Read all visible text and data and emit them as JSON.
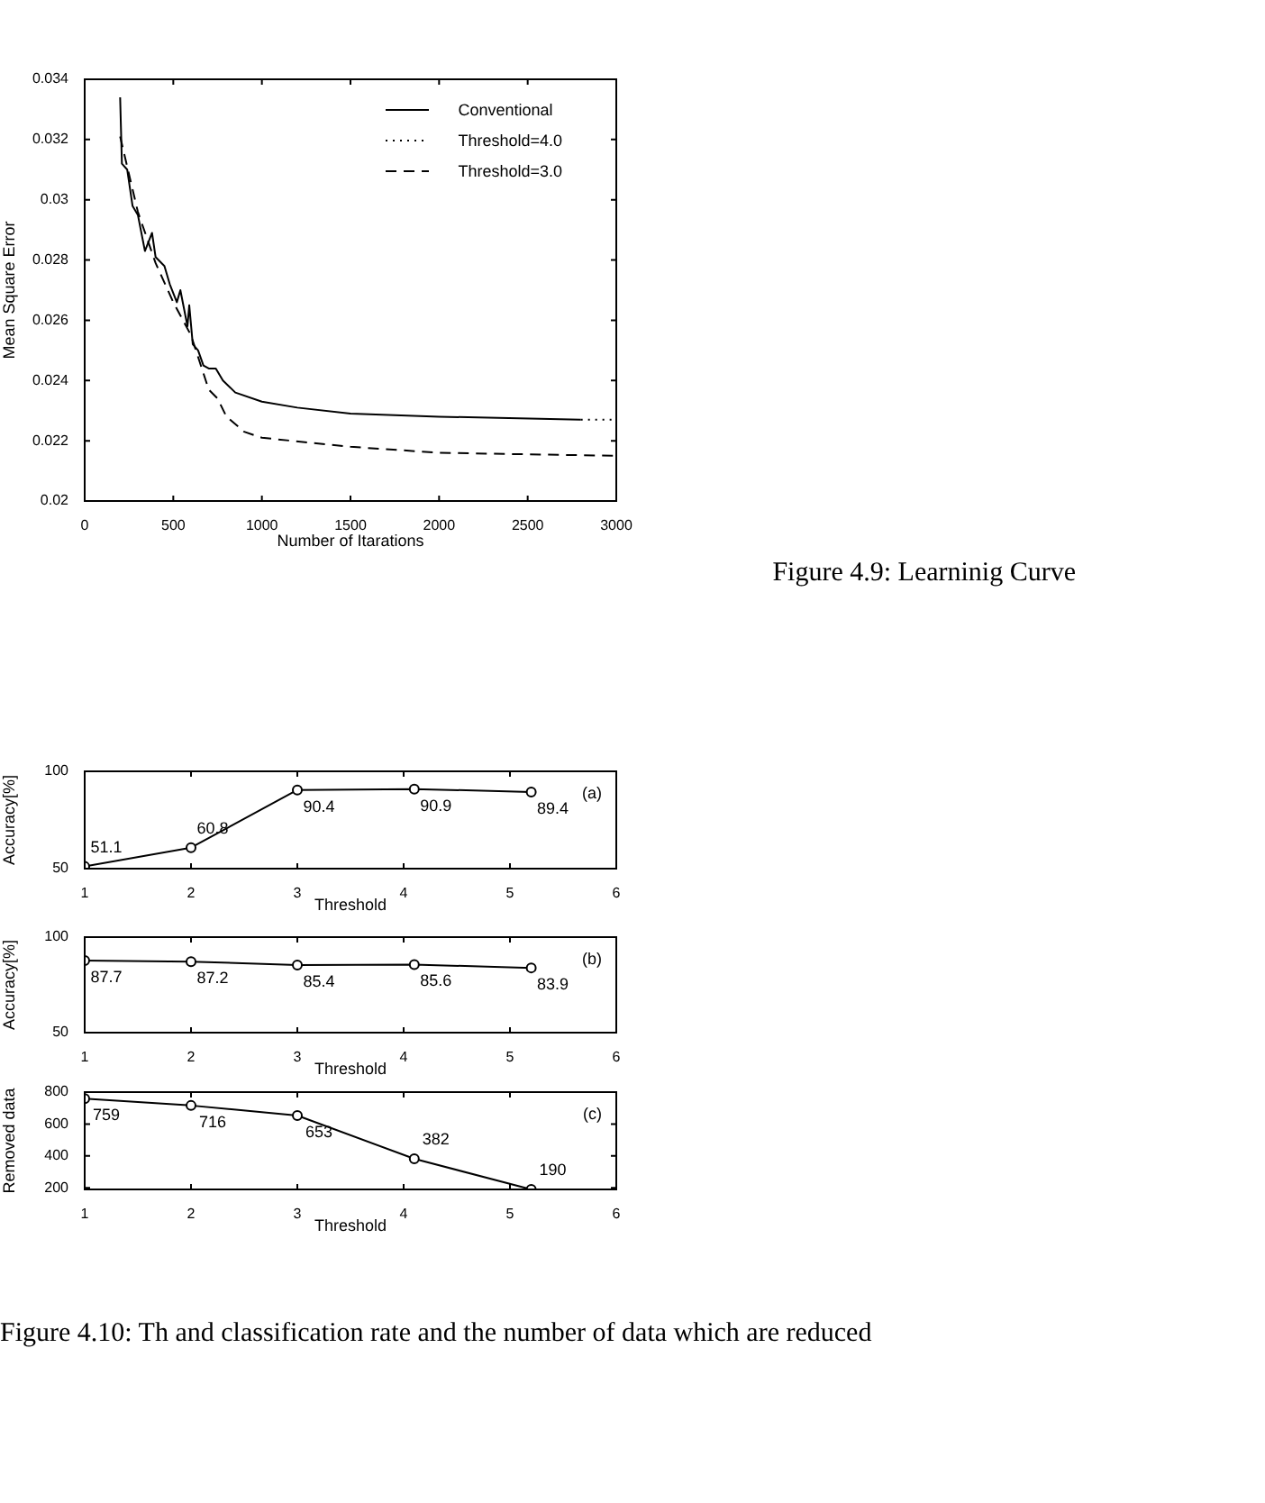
{
  "chart_data": [
    {
      "type": "line",
      "xlabel": "Number of Itarations",
      "ylabel": "Mean Square Error",
      "xlim": [
        0,
        3000
      ],
      "xticks": [
        0,
        500,
        1000,
        1500,
        2000,
        2500,
        3000
      ],
      "ylim": [
        0.02,
        0.034
      ],
      "yticks": [
        0.02,
        0.022,
        0.024,
        0.026,
        0.028,
        0.03,
        0.032,
        0.034
      ],
      "grid": false,
      "legend": "top right",
      "annotations": [
        "Figure 4.9: Learninig Curve"
      ],
      "series": [
        {
          "name": "Conventional",
          "color": "#000000",
          "line_style": "solid",
          "x": [
            200,
            210,
            240,
            270,
            300,
            340,
            380,
            400,
            450,
            480,
            520,
            540,
            560,
            580,
            590,
            610,
            640,
            670,
            700,
            740,
            780,
            850,
            1000,
            1200,
            1500,
            2000,
            2800
          ],
          "values": [
            0.0334,
            0.0312,
            0.031,
            0.0298,
            0.0295,
            0.0283,
            0.0289,
            0.0281,
            0.0278,
            0.0272,
            0.0266,
            0.027,
            0.0264,
            0.0258,
            0.0265,
            0.0252,
            0.025,
            0.0245,
            0.0244,
            0.0244,
            0.024,
            0.0236,
            0.0233,
            0.0231,
            0.0229,
            0.0228,
            0.0227
          ]
        },
        {
          "name": "Threshold=4.0",
          "color": "#000000",
          "line_style": "dotted",
          "x": [
            2800,
            3000
          ],
          "values": [
            0.0227,
            0.0227
          ]
        },
        {
          "name": "Threshold=3.0",
          "color": "#000000",
          "line_style": "dashed",
          "x": [
            200,
            300,
            400,
            500,
            600,
            650,
            700,
            750,
            800,
            900,
            1000,
            1500,
            2000,
            3000
          ],
          "values": [
            0.0321,
            0.0296,
            0.0279,
            0.0266,
            0.0255,
            0.0246,
            0.0237,
            0.0234,
            0.0228,
            0.0223,
            0.0221,
            0.0218,
            0.0216,
            0.0215
          ]
        }
      ]
    },
    {
      "type": "line",
      "subtitle": "(a)",
      "xlabel": "Threshold",
      "ylabel": "Accuracy[%]",
      "xlim": [
        1,
        6
      ],
      "xticks": [
        1,
        2,
        3,
        4,
        5,
        6
      ],
      "ylim": [
        50,
        100
      ],
      "yticks": [
        50,
        100
      ],
      "grid": false,
      "marker": "circle",
      "data_labels": true,
      "series": [
        {
          "color": "#000000",
          "x": [
            1,
            2,
            3,
            4.1,
            5.2
          ],
          "values": [
            51.1,
            60.8,
            90.4,
            90.9,
            89.4
          ]
        }
      ]
    },
    {
      "type": "line",
      "subtitle": "(b)",
      "xlabel": "Threshold",
      "ylabel": "Accuracy[%]",
      "xlim": [
        1,
        6
      ],
      "xticks": [
        1,
        2,
        3,
        4,
        5,
        6
      ],
      "ylim": [
        50,
        100
      ],
      "yticks": [
        50,
        100
      ],
      "grid": false,
      "marker": "circle",
      "data_labels": true,
      "series": [
        {
          "color": "#000000",
          "x": [
            1,
            2,
            3,
            4.1,
            5.2
          ],
          "values": [
            87.7,
            87.2,
            85.4,
            85.6,
            83.9
          ]
        }
      ]
    },
    {
      "type": "line",
      "subtitle": "(c)",
      "xlabel": "Threshold",
      "ylabel": "Removed data",
      "xlim": [
        1,
        6
      ],
      "xticks": [
        1,
        2,
        3,
        4,
        5,
        6
      ],
      "ylim": [
        190,
        800
      ],
      "yticks": [
        200,
        400,
        600,
        800
      ],
      "grid": false,
      "marker": "circle",
      "data_labels": true,
      "annotations": [
        "Figure 4.10: Th and classification rate and the number of data which are reduced"
      ],
      "series": [
        {
          "color": "#000000",
          "x": [
            1,
            2,
            3,
            4.1,
            5.2
          ],
          "values": [
            759,
            716,
            653,
            382,
            190
          ]
        }
      ]
    }
  ]
}
